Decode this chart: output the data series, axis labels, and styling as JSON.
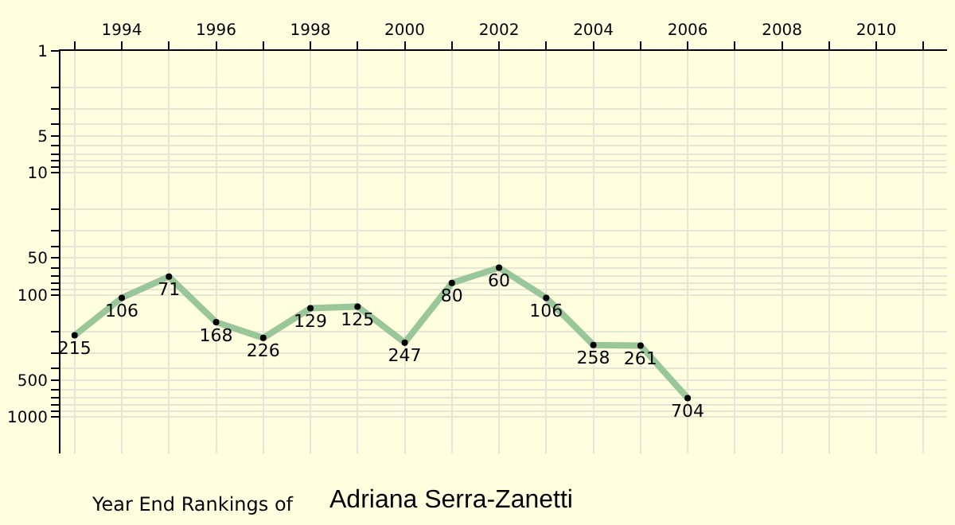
{
  "chart_data": {
    "type": "line",
    "title": "Year End Rankings of",
    "subtitle": "Adriana Serra-Zanetti",
    "x": [
      1993,
      1994,
      1995,
      1996,
      1997,
      1998,
      1999,
      2000,
      2001,
      2002,
      2003,
      2004,
      2005,
      2006
    ],
    "series": [
      {
        "color": "#99c799",
        "values": [
          215,
          106,
          71,
          168,
          226,
          129,
          125,
          247,
          80,
          60,
          106,
          258,
          261,
          704
        ]
      }
    ],
    "data_labels": true,
    "marker": "circle",
    "line_style": "solid",
    "log": true,
    "grid": true,
    "xlim": [
      1992.7,
      2011.5
    ],
    "xticks": [
      {
        "value": 1993,
        "label": null
      },
      1994,
      {
        "value": 1995,
        "label": null
      },
      1996,
      {
        "value": 1997,
        "label": null
      },
      1998,
      {
        "value": 1999,
        "label": null
      },
      2000,
      {
        "value": 2001,
        "label": null
      },
      2002,
      {
        "value": 2003,
        "label": null
      },
      2004,
      {
        "value": 2005,
        "label": null
      },
      2006,
      {
        "value": 2007,
        "label": null
      },
      2008,
      {
        "value": 2009,
        "label": null
      },
      2010,
      {
        "value": 2011,
        "label": null
      }
    ],
    "ylim": [
      2000,
      1
    ],
    "yticks": [
      1,
      {
        "value": 2,
        "label": null
      },
      {
        "value": 3,
        "label": null
      },
      {
        "value": 4,
        "label": null
      },
      5,
      {
        "value": 6,
        "label": null
      },
      {
        "value": 7,
        "label": null
      },
      {
        "value": 8,
        "label": null
      },
      {
        "value": 9,
        "label": null
      },
      10,
      {
        "value": 20,
        "label": null
      },
      {
        "value": 30,
        "label": null
      },
      {
        "value": 40,
        "label": null
      },
      50,
      {
        "value": 60,
        "label": null
      },
      {
        "value": 70,
        "label": null
      },
      {
        "value": 80,
        "label": null
      },
      {
        "value": 90,
        "label": null
      },
      100,
      {
        "value": 200,
        "label": null
      },
      {
        "value": 300,
        "label": null
      },
      {
        "value": 400,
        "label": null
      },
      500,
      {
        "value": 600,
        "label": null
      },
      {
        "value": 700,
        "label": null
      },
      {
        "value": 800,
        "label": null
      },
      {
        "value": 900,
        "label": null
      },
      1000
    ]
  }
}
